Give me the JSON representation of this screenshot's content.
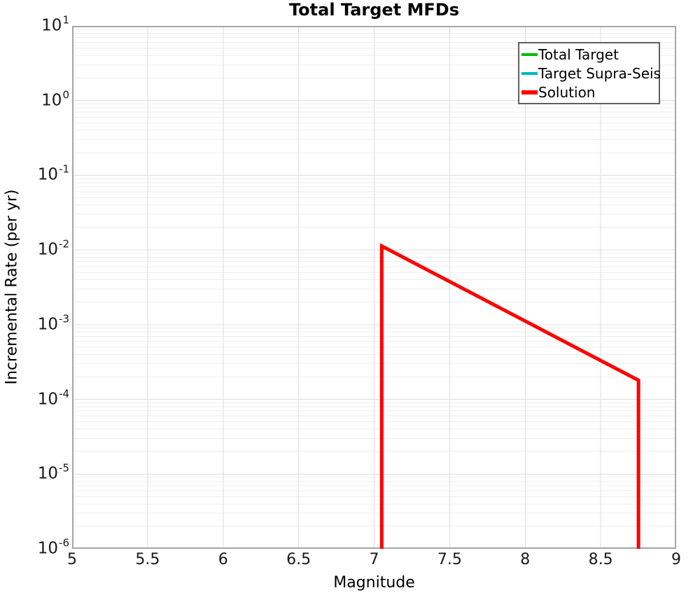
{
  "figure": {
    "background": "#ffffff",
    "plot_border_color": "#a6a6a6"
  },
  "chart_data": {
    "type": "line",
    "title": "Total Target MFDs",
    "xlabel": "Magnitude",
    "ylabel": "Incremental Rate (per yr)",
    "x_axis": {
      "min": 5,
      "max": 9,
      "ticks": [
        5,
        5.5,
        6,
        6.5,
        7,
        7.5,
        8,
        8.5,
        9
      ],
      "tick_labels": [
        "5",
        "5.5",
        "6",
        "6.5",
        "7",
        "7.5",
        "8",
        "8.5",
        "9"
      ]
    },
    "y_axis": {
      "scale": "log",
      "min_exp": -6,
      "max_exp": 1,
      "tick_base": "10",
      "tick_exponents": [
        1,
        0,
        -1,
        -2,
        -3,
        -4,
        -5,
        -6
      ]
    },
    "grid": {
      "show": true,
      "major_color": "#dcdcdc",
      "minor_color": "#eeeeee"
    },
    "legend": {
      "position": "upper right",
      "border_color": "#5f5f5f"
    },
    "series": [
      {
        "name": "Total Target",
        "color": "#00bb00",
        "line_width": 3,
        "points": [
          [
            7.05,
            1e-06
          ],
          [
            7.05,
            0.0113
          ],
          [
            8.75,
            0.00018
          ],
          [
            8.75,
            1e-06
          ]
        ]
      },
      {
        "name": "Target Supra-Seis",
        "color": "#00b7c0",
        "line_width": 3,
        "points": [
          [
            7.05,
            1e-06
          ],
          [
            7.05,
            0.0113
          ],
          [
            8.75,
            0.00018
          ],
          [
            8.75,
            1e-06
          ]
        ]
      },
      {
        "name": "Solution",
        "color": "#ff0000",
        "line_width": 5,
        "points": [
          [
            7.05,
            1e-06
          ],
          [
            7.05,
            0.0113
          ],
          [
            8.75,
            0.00018
          ],
          [
            8.75,
            1e-06
          ]
        ]
      }
    ]
  }
}
